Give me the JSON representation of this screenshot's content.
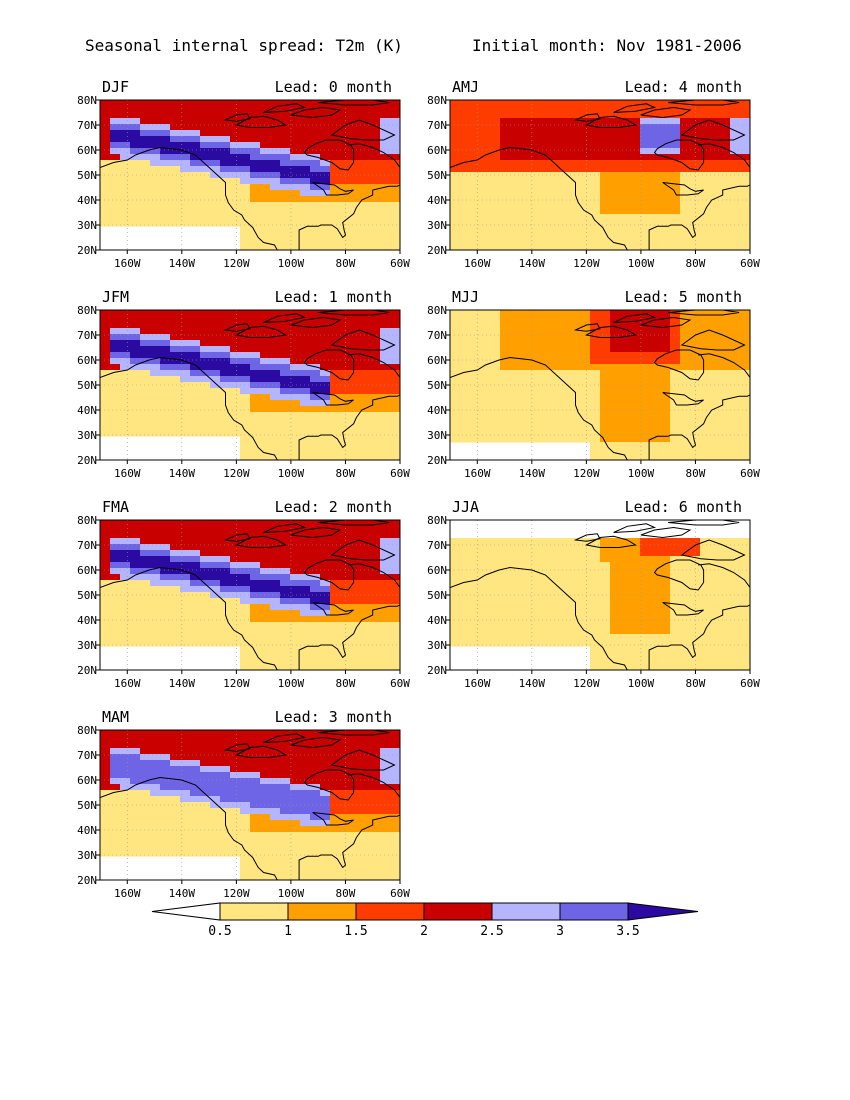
{
  "header": {
    "title": "Seasonal internal spread: T2m (K)",
    "subtitle": "Initial month: Nov 1981-2006"
  },
  "colors": {
    "bins": [
      "#ffffff",
      "#ffe680",
      "#ffa000",
      "#ff3c00",
      "#c80000",
      "#b4b4ff",
      "#6e64e6",
      "#2a0aa0"
    ],
    "land_outline": "#000000",
    "gridline": "#999999"
  },
  "chart_data": {
    "type": "heatmap",
    "variable": "Seasonal internal spread: T2m (K)",
    "x_ticks": [
      "160W",
      "140W",
      "120W",
      "100W",
      "80W",
      "60W"
    ],
    "y_ticks": [
      "20N",
      "30N",
      "40N",
      "50N",
      "60N",
      "70N",
      "80N"
    ],
    "xlim": [
      -170,
      -60
    ],
    "ylim": [
      20,
      80
    ],
    "grid": true,
    "legend": {
      "type": "colorbar",
      "placement": "bottom",
      "levels": [
        "0.5",
        "1",
        "1.5",
        "2",
        "2.5",
        "3",
        "3.5"
      ]
    },
    "panels": [
      {
        "season": "DJF",
        "lead": "Lead: 0 month",
        "max_level": 3.5
      },
      {
        "season": "AMJ",
        "lead": "Lead: 4 month",
        "max_level": 3.0
      },
      {
        "season": "JFM",
        "lead": "Lead: 1 month",
        "max_level": 3.5
      },
      {
        "season": "MJJ",
        "lead": "Lead: 5 month",
        "max_level": 2.5
      },
      {
        "season": "FMA",
        "lead": "Lead: 2 month",
        "max_level": 3.5
      },
      {
        "season": "JJA",
        "lead": "Lead: 6 month",
        "max_level": 2.0
      },
      {
        "season": "MAM",
        "lead": "Lead: 3 month",
        "max_level": 3.0
      }
    ]
  }
}
